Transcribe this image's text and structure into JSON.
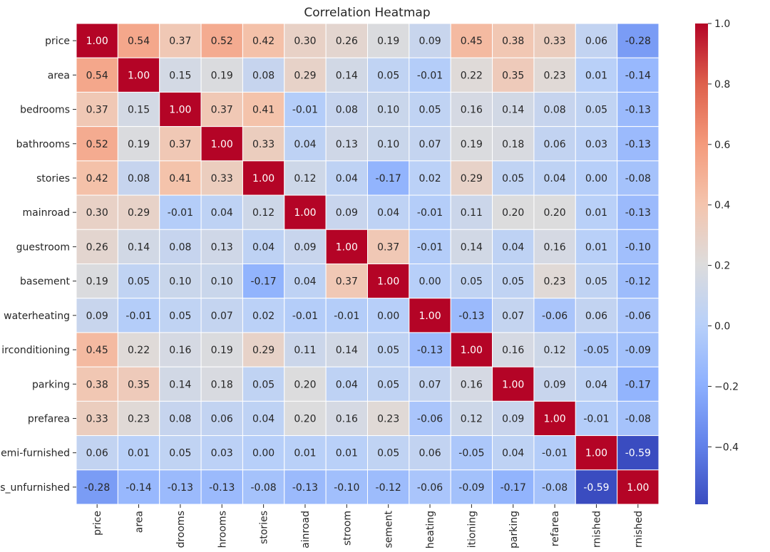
{
  "chart_data": {
    "type": "heatmap",
    "title": "Correlation Heatmap",
    "colormap": "coolwarm",
    "value_range": [
      -0.59,
      1.0
    ],
    "grid": true,
    "legend": "colorbar-right",
    "row_labels": [
      "price",
      "area",
      "bedrooms",
      "bathrooms",
      "stories",
      "mainroad",
      "guestroom",
      "basement",
      "hotwaterheating",
      "airconditioning",
      "parking",
      "prefarea",
      "furnishingstatus_semi-furnished",
      "furnishingstatus_unfurnished"
    ],
    "col_labels": [
      "price",
      "area",
      "bedrooms",
      "bathrooms",
      "stories",
      "mainroad",
      "guestroom",
      "basement",
      "hotwaterheating",
      "airconditioning",
      "parking",
      "prefarea",
      "furnishingstatus_semi-furnished",
      "furnishingstatus_unfurnished"
    ],
    "values": [
      [
        1.0,
        0.54,
        0.37,
        0.52,
        0.42,
        0.3,
        0.26,
        0.19,
        0.09,
        0.45,
        0.38,
        0.33,
        0.06,
        -0.28
      ],
      [
        0.54,
        1.0,
        0.15,
        0.19,
        0.08,
        0.29,
        0.14,
        0.05,
        -0.01,
        0.22,
        0.35,
        0.23,
        0.01,
        -0.14
      ],
      [
        0.37,
        0.15,
        1.0,
        0.37,
        0.41,
        -0.01,
        0.08,
        0.1,
        0.05,
        0.16,
        0.14,
        0.08,
        0.05,
        -0.13
      ],
      [
        0.52,
        0.19,
        0.37,
        1.0,
        0.33,
        0.04,
        0.13,
        0.1,
        0.07,
        0.19,
        0.18,
        0.06,
        0.03,
        -0.13
      ],
      [
        0.42,
        0.08,
        0.41,
        0.33,
        1.0,
        0.12,
        0.04,
        -0.17,
        0.02,
        0.29,
        0.05,
        0.04,
        -0.0,
        -0.08
      ],
      [
        0.3,
        0.29,
        -0.01,
        0.04,
        0.12,
        1.0,
        0.09,
        0.04,
        -0.01,
        0.11,
        0.2,
        0.2,
        0.01,
        -0.13
      ],
      [
        0.26,
        0.14,
        0.08,
        0.13,
        0.04,
        0.09,
        1.0,
        0.37,
        -0.01,
        0.14,
        0.04,
        0.16,
        0.01,
        -0.1
      ],
      [
        0.19,
        0.05,
        0.1,
        0.1,
        -0.17,
        0.04,
        0.37,
        1.0,
        0.0,
        0.05,
        0.05,
        0.23,
        0.05,
        -0.12
      ],
      [
        0.09,
        -0.01,
        0.05,
        0.07,
        0.02,
        -0.01,
        -0.01,
        0.0,
        1.0,
        -0.13,
        0.07,
        -0.06,
        0.06,
        -0.06
      ],
      [
        0.45,
        0.22,
        0.16,
        0.19,
        0.29,
        0.11,
        0.14,
        0.05,
        -0.13,
        1.0,
        0.16,
        0.12,
        -0.05,
        -0.09
      ],
      [
        0.38,
        0.35,
        0.14,
        0.18,
        0.05,
        0.2,
        0.04,
        0.05,
        0.07,
        0.16,
        1.0,
        0.09,
        0.04,
        -0.17
      ],
      [
        0.33,
        0.23,
        0.08,
        0.06,
        0.04,
        0.2,
        0.16,
        0.23,
        -0.06,
        0.12,
        0.09,
        1.0,
        -0.01,
        -0.08
      ],
      [
        0.06,
        0.01,
        0.05,
        0.03,
        -0.0,
        0.01,
        0.01,
        0.05,
        0.06,
        -0.05,
        0.04,
        -0.01,
        1.0,
        -0.59
      ],
      [
        -0.28,
        -0.14,
        -0.13,
        -0.13,
        -0.08,
        -0.13,
        -0.1,
        -0.12,
        -0.06,
        -0.09,
        -0.17,
        -0.08,
        -0.59,
        1.0
      ]
    ],
    "colorbar_ticks": [
      {
        "value": 1.0,
        "label": "1.0"
      },
      {
        "value": 0.8,
        "label": "0.8"
      },
      {
        "value": 0.6,
        "label": "0.6"
      },
      {
        "value": 0.4,
        "label": "0.4"
      },
      {
        "value": 0.2,
        "label": "0.2"
      },
      {
        "value": 0.0,
        "label": "0.0"
      },
      {
        "value": -0.2,
        "label": "−0.2"
      },
      {
        "value": -0.4,
        "label": "−0.4"
      }
    ]
  }
}
